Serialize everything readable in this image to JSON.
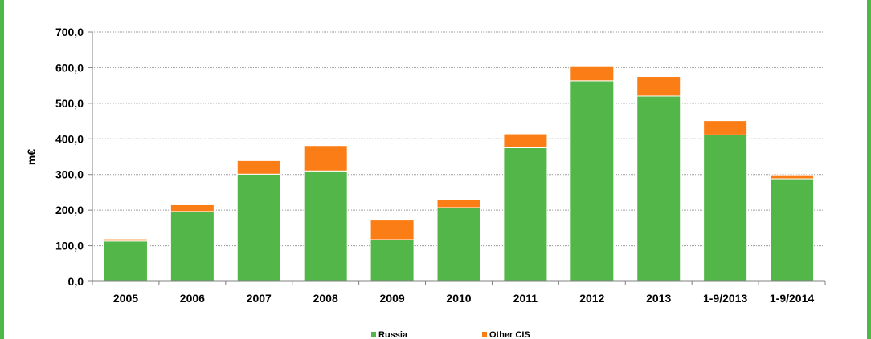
{
  "chart_data": {
    "type": "bar",
    "stacked": true,
    "categories": [
      "2005",
      "2006",
      "2007",
      "2008",
      "2009",
      "2010",
      "2011",
      "2012",
      "2013",
      "1-9/2013",
      "1-9/2014"
    ],
    "series": [
      {
        "name": "Russia",
        "color": "#52b748",
        "values": [
          113,
          196,
          301,
          310,
          117,
          207,
          375,
          563,
          520,
          411,
          288
        ]
      },
      {
        "name": "Other CIS",
        "color": "#fb7d15",
        "values": [
          6,
          19,
          38,
          71,
          55,
          23,
          39,
          42,
          55,
          40,
          11
        ]
      }
    ],
    "ylabel": "m€",
    "ylim": [
      0,
      700
    ],
    "yticks": [
      "0,0",
      "100,0",
      "200,0",
      "300,0",
      "400,0",
      "500,0",
      "600,0",
      "700,0"
    ],
    "grid": true,
    "legend_position": "bottom"
  }
}
